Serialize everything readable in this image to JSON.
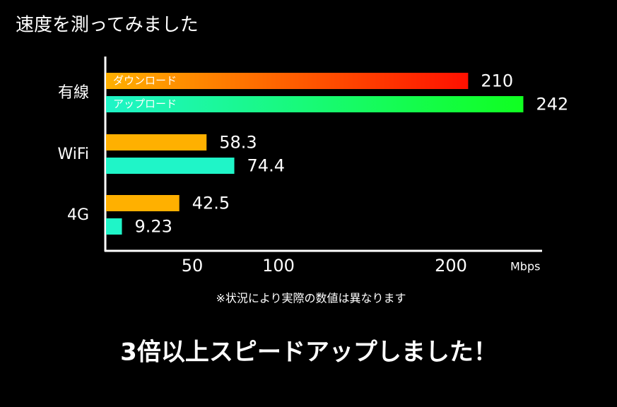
{
  "chart_data": {
    "type": "bar",
    "orientation": "horizontal",
    "title": "速度を測ってみました",
    "categories": [
      "有線",
      "WiFi",
      "4G"
    ],
    "series": [
      {
        "name": "ダウンロード",
        "color": "#ffb000",
        "values": [
          210,
          58.3,
          42.5
        ]
      },
      {
        "name": "アップロード",
        "color": "#1ff5c8",
        "values": [
          242,
          74.4,
          9.23
        ]
      }
    ],
    "xlim": [
      0,
      250
    ],
    "xticks": [
      50,
      100,
      200
    ],
    "unit": "Mbps",
    "note": "※状況により実際の数値は異なります",
    "headline": "3倍以上スピードアップしました！"
  }
}
